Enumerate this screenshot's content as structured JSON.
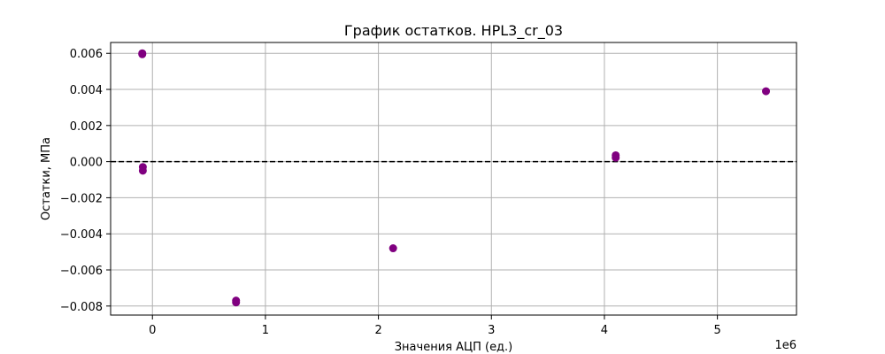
{
  "chart_data": {
    "type": "scatter",
    "title": "График остатков. HPL3_cr_03",
    "xlabel": "Значения АЦП (ед.)",
    "ylabel": "Остатки, МПа",
    "x_offset_label": "1e6",
    "xlim": [
      -0.37,
      5.7
    ],
    "ylim": [
      -0.0085,
      0.0066
    ],
    "x_scale_factor": 1000000,
    "x_ticks": [
      0,
      1,
      2,
      3,
      4,
      5
    ],
    "y_ticks": [
      -0.008,
      -0.006,
      -0.004,
      -0.002,
      0.0,
      0.002,
      0.004,
      0.006
    ],
    "x_tick_labels": [
      "0",
      "1",
      "2",
      "3",
      "4",
      "5"
    ],
    "y_tick_labels": [
      "−0.008",
      "−0.006",
      "−0.004",
      "−0.002",
      "0.000",
      "0.002",
      "0.004",
      "0.006"
    ],
    "grid": true,
    "reference_line": {
      "y": 0,
      "style": "dashed",
      "color": "#000000"
    },
    "marker_color": "#800080",
    "points": [
      {
        "x": -0.09,
        "y": 0.00595
      },
      {
        "x": -0.09,
        "y": 0.006
      },
      {
        "x": -0.085,
        "y": -0.0003
      },
      {
        "x": -0.085,
        "y": -0.0005
      },
      {
        "x": 0.74,
        "y": -0.0077
      },
      {
        "x": 0.74,
        "y": -0.0078
      },
      {
        "x": 2.13,
        "y": -0.0048
      },
      {
        "x": 4.1,
        "y": 0.00035
      },
      {
        "x": 4.1,
        "y": 0.00022
      },
      {
        "x": 5.43,
        "y": 0.0039
      }
    ]
  }
}
